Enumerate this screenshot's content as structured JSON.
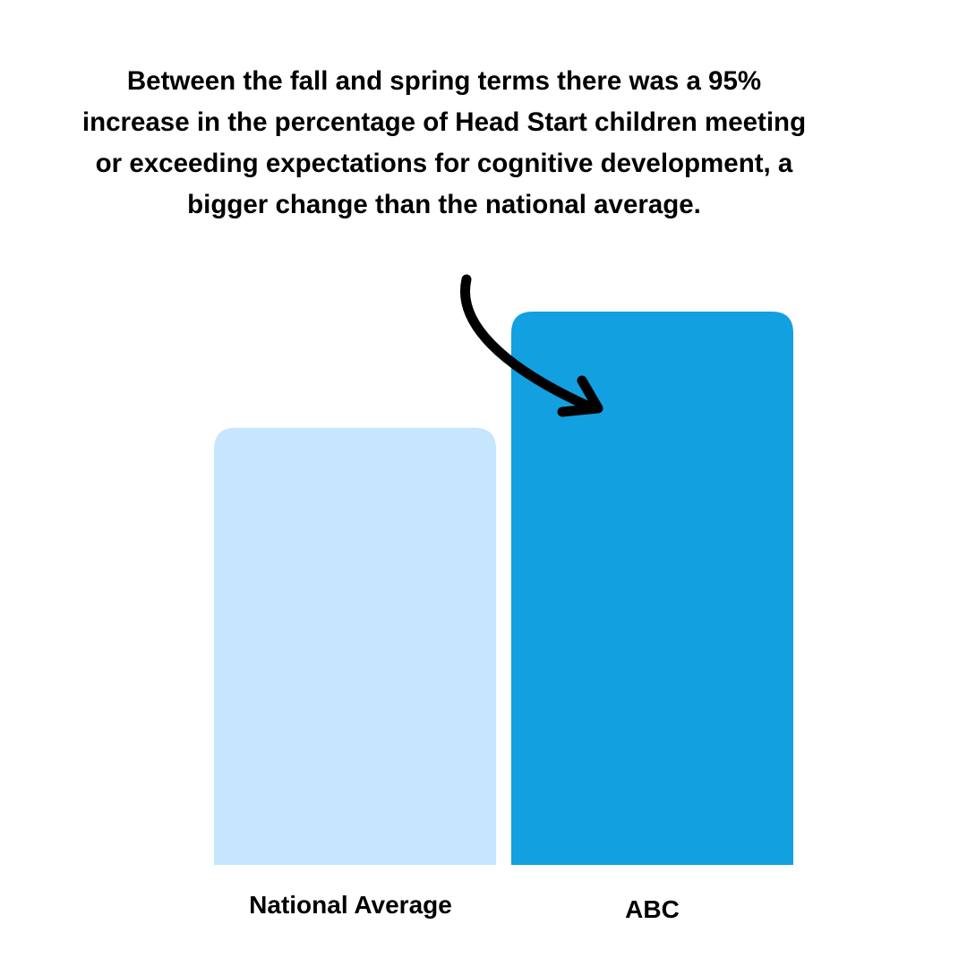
{
  "chart_data": {
    "type": "bar",
    "annotation": "Between the fall and spring terms there was a 95% increase in the percentage of Head Start children meeting or exceeding expectations for cognitive development, a bigger change than the national average.",
    "categories": [
      "National Average",
      "ABC"
    ],
    "series": [
      {
        "name": null,
        "colors": [
          "#c5e6fc",
          "#12a0e0"
        ],
        "values": [
          79,
          100
        ]
      }
    ],
    "ylim": [
      0,
      100
    ]
  }
}
